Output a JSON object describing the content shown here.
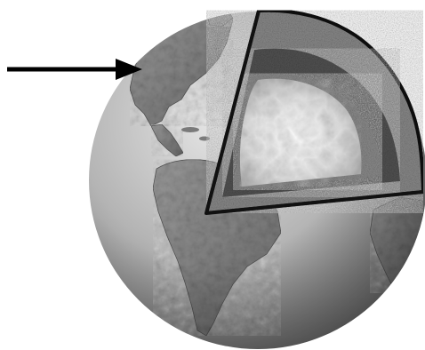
{
  "diagram": {
    "subject": "earth-cutaway",
    "colors": {
      "background": "#ffffff",
      "ocean_light": "#dcdcdc",
      "ocean_mid": "#a9a9a9",
      "ocean_dark": "#6b6b6b",
      "land": "#8a8a8a",
      "land_dark": "#5e5e5e",
      "crust_outline": "#111111",
      "mantle_outer": "#6f6f6f",
      "mantle_band": "#3e3e3e",
      "inner_shell": "#7a7a7a",
      "core_light": "#f2f2f2",
      "core_mid": "#cfcfcf",
      "arrow": "#000000"
    },
    "icons": {
      "arrow": "right-arrow-icon",
      "globe": "globe-icon"
    }
  }
}
